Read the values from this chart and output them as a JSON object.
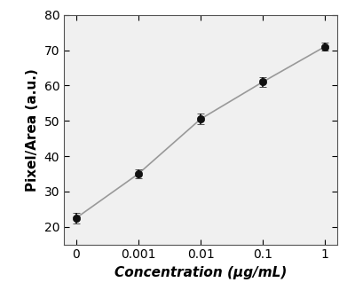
{
  "x_positions": [
    0,
    1,
    2,
    3,
    4
  ],
  "x_labels": [
    "0",
    "0.001",
    "0.01",
    "0.1",
    "1"
  ],
  "y_values": [
    22.5,
    35.0,
    50.5,
    61.0,
    71.0
  ],
  "y_errors": [
    1.5,
    1.2,
    1.5,
    1.3,
    1.2
  ],
  "ylabel": "Pixel/Area (a.u.)",
  "xlabel": "Concentration (μg/mL)",
  "ylim": [
    15,
    80
  ],
  "yticks": [
    20,
    30,
    40,
    50,
    60,
    70,
    80
  ],
  "line_color": "#999999",
  "marker_color": "#111111",
  "marker_size": 6,
  "line_width": 1.2,
  "background_color": "#ffffff",
  "panel_color": "#f0f0f0",
  "ylabel_fontsize": 11,
  "xlabel_fontsize": 11,
  "tick_fontsize": 10
}
